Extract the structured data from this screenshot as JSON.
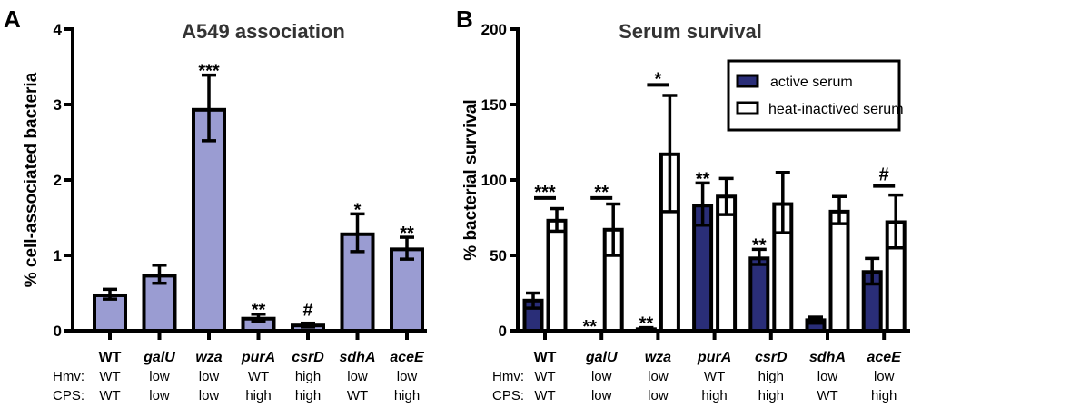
{
  "chart_data": [
    {
      "type": "bar",
      "panel": "A",
      "title": "A549 association",
      "ylabel": "% cell-associated bacteria",
      "ylim": [
        0,
        4
      ],
      "yticks": [
        "0",
        "1",
        "2",
        "3",
        "4"
      ],
      "categories": [
        "WT",
        "galU",
        "wza",
        "purA",
        "csrD",
        "sdhA",
        "aceE"
      ],
      "italic": [
        false,
        true,
        true,
        true,
        true,
        true,
        true
      ],
      "row_labels": [
        "Hmv:",
        "CPS:"
      ],
      "hmv": [
        "WT",
        "low",
        "low",
        "WT",
        "high",
        "low",
        "low"
      ],
      "cps": [
        "WT",
        "low",
        "low",
        "high",
        "high",
        "WT",
        "high"
      ],
      "color": "#9a9cd2",
      "values": [
        0.47,
        0.73,
        2.93,
        0.16,
        0.07,
        1.28,
        1.08
      ],
      "err_low": [
        0.42,
        0.63,
        2.52,
        0.12,
        0.05,
        1.05,
        0.95
      ],
      "err_high": [
        0.55,
        0.87,
        3.39,
        0.22,
        0.1,
        1.55,
        1.24
      ],
      "annotations": [
        "",
        "",
        "***",
        "**",
        "#",
        "*",
        "**"
      ]
    },
    {
      "type": "bar",
      "panel": "B",
      "title": "Serum survival",
      "ylabel": "% bacterial survival",
      "ylim": [
        0,
        200
      ],
      "yticks": [
        "0",
        "50",
        "100",
        "150",
        "200"
      ],
      "categories": [
        "WT",
        "galU",
        "wza",
        "purA",
        "csrD",
        "sdhA",
        "aceE"
      ],
      "italic": [
        false,
        true,
        true,
        true,
        true,
        true,
        true
      ],
      "row_labels": [
        "Hmv:",
        "CPS:"
      ],
      "hmv": [
        "WT",
        "low",
        "low",
        "WT",
        "high",
        "low",
        "low"
      ],
      "cps": [
        "WT",
        "low",
        "low",
        "high",
        "high",
        "WT",
        "high"
      ],
      "legend": {
        "position": "top-right",
        "entries": [
          "active serum",
          "heat-inactived serum"
        ]
      },
      "series": [
        {
          "name": "active serum",
          "color": "#2a2e78",
          "values": [
            20,
            0,
            1,
            83,
            48,
            7,
            39
          ],
          "err_low": [
            15,
            0,
            0,
            70,
            44,
            5,
            31
          ],
          "err_high": [
            25,
            0,
            2,
            98,
            54,
            9,
            48
          ],
          "annotations": [
            "",
            "**",
            "**",
            "**",
            "**",
            "",
            ""
          ]
        },
        {
          "name": "heat-inactived serum",
          "color": "#ffffff",
          "values": [
            73,
            67,
            117,
            89,
            84,
            79,
            72
          ],
          "err_low": [
            66,
            50,
            79,
            77,
            65,
            71,
            55
          ],
          "err_high": [
            81,
            84,
            156,
            101,
            105,
            89,
            90
          ],
          "annotations": [
            "",
            "",
            "",
            "",
            "",
            "",
            ""
          ]
        }
      ],
      "pair_annotations": [
        "***",
        "**",
        "*",
        "",
        "",
        "",
        "#"
      ],
      "pair_bar_level": [
        88,
        88,
        163,
        null,
        null,
        null,
        96
      ]
    }
  ]
}
